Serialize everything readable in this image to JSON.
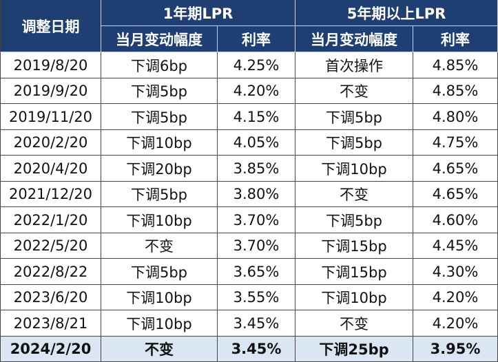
{
  "header": {
    "date": "调整日期",
    "groups": [
      "1年期LPR",
      "5年期以上LPR"
    ],
    "sub": [
      "当月变动幅度",
      "利率",
      "当月变动幅度",
      "利率"
    ]
  },
  "table": {
    "rows": [
      [
        "2019/8/20",
        "下调6bp",
        "4.25%",
        "首次操作",
        "4.85%"
      ],
      [
        "2019/9/20",
        "下调5bp",
        "4.20%",
        "不变",
        "4.85%"
      ],
      [
        "2019/11/20",
        "下调5bp",
        "4.15%",
        "下调5bp",
        "4.80%"
      ],
      [
        "2020/2/20",
        "下调10bp",
        "4.05%",
        "下调5bp",
        "4.75%"
      ],
      [
        "2020/4/20",
        "下调20bp",
        "3.85%",
        "下调10bp",
        "4.65%"
      ],
      [
        "2021/12/20",
        "下调5bp",
        "3.80%",
        "不变",
        "4.65%"
      ],
      [
        "2022/1/20",
        "下调10bp",
        "3.70%",
        "下调5bp",
        "4.60%"
      ],
      [
        "2022/5/20",
        "不变",
        "3.70%",
        "下调15bp",
        "4.45%"
      ],
      [
        "2022/8/22",
        "下调5bp",
        "3.65%",
        "下调15bp",
        "4.30%"
      ],
      [
        "2023/6/20",
        "下调10bp",
        "3.55%",
        "下调10bp",
        "4.20%"
      ],
      [
        "2023/8/21",
        "下调10bp",
        "3.45%",
        "不变",
        "4.20%"
      ],
      [
        "2024/2/20",
        "不变",
        "3.45%",
        "下调25bp",
        "3.95%"
      ]
    ]
  }
}
